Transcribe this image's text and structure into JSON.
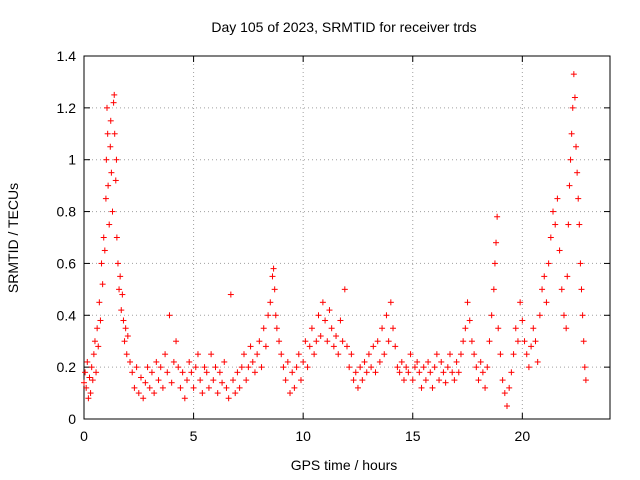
{
  "chart_data": {
    "type": "scatter",
    "title": "Day 105 of 2023, SRMTID for receiver trds",
    "xlabel": "GPS time / hours",
    "ylabel": "SRMTID / TECUs",
    "xlim": [
      0,
      24
    ],
    "ylim": [
      0,
      1.4
    ],
    "xticks": [
      0,
      5,
      10,
      15,
      20
    ],
    "xtick_labels": [
      "0",
      "5",
      "10",
      "15",
      "20"
    ],
    "yticks": [
      0,
      0.2,
      0.4,
      0.6,
      0.8,
      1.0,
      1.2,
      1.4
    ],
    "ytick_labels": [
      "0",
      "0.2",
      "0.4",
      "0.6",
      "0.8",
      "1",
      "1.2",
      "1.4"
    ],
    "grid": true,
    "marker": "+",
    "color": "#ff0000",
    "series": [
      {
        "name": "trds",
        "points": [
          [
            0.0,
            0.14
          ],
          [
            0.05,
            0.18
          ],
          [
            0.1,
            0.12
          ],
          [
            0.15,
            0.22
          ],
          [
            0.2,
            0.08
          ],
          [
            0.25,
            0.16
          ],
          [
            0.3,
            0.1
          ],
          [
            0.35,
            0.2
          ],
          [
            0.4,
            0.15
          ],
          [
            0.45,
            0.25
          ],
          [
            0.5,
            0.3
          ],
          [
            0.55,
            0.18
          ],
          [
            0.6,
            0.35
          ],
          [
            0.65,
            0.28
          ],
          [
            0.7,
            0.45
          ],
          [
            0.75,
            0.38
          ],
          [
            0.8,
            0.6
          ],
          [
            0.85,
            0.52
          ],
          [
            0.9,
            0.7
          ],
          [
            0.95,
            0.65
          ],
          [
            1.0,
            0.85
          ],
          [
            1.02,
            1.0
          ],
          [
            1.05,
            1.2
          ],
          [
            1.08,
            1.1
          ],
          [
            1.1,
            0.9
          ],
          [
            1.15,
            0.75
          ],
          [
            1.2,
            1.05
          ],
          [
            1.22,
            1.15
          ],
          [
            1.25,
            0.95
          ],
          [
            1.3,
            0.8
          ],
          [
            1.35,
            1.22
          ],
          [
            1.38,
            1.25
          ],
          [
            1.4,
            1.1
          ],
          [
            1.45,
            0.92
          ],
          [
            1.48,
            1.0
          ],
          [
            1.5,
            0.7
          ],
          [
            1.55,
            0.6
          ],
          [
            1.6,
            0.5
          ],
          [
            1.65,
            0.55
          ],
          [
            1.7,
            0.42
          ],
          [
            1.75,
            0.48
          ],
          [
            1.8,
            0.38
          ],
          [
            1.85,
            0.3
          ],
          [
            1.9,
            0.35
          ],
          [
            1.95,
            0.25
          ],
          [
            2.0,
            0.32
          ],
          [
            2.1,
            0.22
          ],
          [
            2.2,
            0.18
          ],
          [
            2.3,
            0.12
          ],
          [
            2.4,
            0.2
          ],
          [
            2.5,
            0.1
          ],
          [
            2.6,
            0.16
          ],
          [
            2.7,
            0.08
          ],
          [
            2.8,
            0.14
          ],
          [
            2.9,
            0.2
          ],
          [
            3.0,
            0.12
          ],
          [
            3.1,
            0.18
          ],
          [
            3.2,
            0.1
          ],
          [
            3.3,
            0.22
          ],
          [
            3.4,
            0.15
          ],
          [
            3.5,
            0.2
          ],
          [
            3.6,
            0.12
          ],
          [
            3.7,
            0.25
          ],
          [
            3.8,
            0.18
          ],
          [
            3.9,
            0.4
          ],
          [
            4.0,
            0.14
          ],
          [
            4.1,
            0.22
          ],
          [
            4.2,
            0.3
          ],
          [
            4.3,
            0.2
          ],
          [
            4.4,
            0.12
          ],
          [
            4.5,
            0.18
          ],
          [
            4.6,
            0.08
          ],
          [
            4.7,
            0.15
          ],
          [
            4.8,
            0.22
          ],
          [
            4.9,
            0.18
          ],
          [
            5.0,
            0.12
          ],
          [
            5.1,
            0.2
          ],
          [
            5.2,
            0.25
          ],
          [
            5.3,
            0.15
          ],
          [
            5.4,
            0.1
          ],
          [
            5.5,
            0.2
          ],
          [
            5.6,
            0.18
          ],
          [
            5.7,
            0.12
          ],
          [
            5.8,
            0.25
          ],
          [
            5.9,
            0.15
          ],
          [
            6.0,
            0.2
          ],
          [
            6.1,
            0.1
          ],
          [
            6.2,
            0.18
          ],
          [
            6.3,
            0.14
          ],
          [
            6.4,
            0.22
          ],
          [
            6.5,
            0.12
          ],
          [
            6.6,
            0.08
          ],
          [
            6.7,
            0.48
          ],
          [
            6.8,
            0.15
          ],
          [
            6.9,
            0.1
          ],
          [
            7.0,
            0.18
          ],
          [
            7.1,
            0.12
          ],
          [
            7.2,
            0.2
          ],
          [
            7.3,
            0.25
          ],
          [
            7.4,
            0.15
          ],
          [
            7.5,
            0.2
          ],
          [
            7.6,
            0.28
          ],
          [
            7.7,
            0.22
          ],
          [
            7.8,
            0.18
          ],
          [
            7.9,
            0.25
          ],
          [
            8.0,
            0.3
          ],
          [
            8.1,
            0.2
          ],
          [
            8.2,
            0.35
          ],
          [
            8.3,
            0.28
          ],
          [
            8.4,
            0.4
          ],
          [
            8.5,
            0.45
          ],
          [
            8.6,
            0.55
          ],
          [
            8.65,
            0.58
          ],
          [
            8.7,
            0.5
          ],
          [
            8.75,
            0.4
          ],
          [
            8.8,
            0.35
          ],
          [
            8.9,
            0.3
          ],
          [
            9.0,
            0.25
          ],
          [
            9.1,
            0.2
          ],
          [
            9.2,
            0.15
          ],
          [
            9.3,
            0.22
          ],
          [
            9.4,
            0.1
          ],
          [
            9.5,
            0.18
          ],
          [
            9.6,
            0.12
          ],
          [
            9.7,
            0.2
          ],
          [
            9.8,
            0.25
          ],
          [
            9.9,
            0.15
          ],
          [
            10.0,
            0.22
          ],
          [
            10.1,
            0.3
          ],
          [
            10.2,
            0.2
          ],
          [
            10.3,
            0.28
          ],
          [
            10.4,
            0.35
          ],
          [
            10.5,
            0.25
          ],
          [
            10.6,
            0.3
          ],
          [
            10.7,
            0.4
          ],
          [
            10.8,
            0.32
          ],
          [
            10.9,
            0.45
          ],
          [
            11.0,
            0.38
          ],
          [
            11.1,
            0.3
          ],
          [
            11.2,
            0.42
          ],
          [
            11.3,
            0.35
          ],
          [
            11.4,
            0.28
          ],
          [
            11.5,
            0.32
          ],
          [
            11.6,
            0.25
          ],
          [
            11.7,
            0.38
          ],
          [
            11.8,
            0.3
          ],
          [
            11.9,
            0.5
          ],
          [
            12.0,
            0.28
          ],
          [
            12.1,
            0.2
          ],
          [
            12.2,
            0.25
          ],
          [
            12.3,
            0.15
          ],
          [
            12.4,
            0.18
          ],
          [
            12.5,
            0.12
          ],
          [
            12.6,
            0.2
          ],
          [
            12.7,
            0.15
          ],
          [
            12.8,
            0.22
          ],
          [
            12.9,
            0.18
          ],
          [
            13.0,
            0.25
          ],
          [
            13.1,
            0.2
          ],
          [
            13.2,
            0.28
          ],
          [
            13.3,
            0.18
          ],
          [
            13.4,
            0.3
          ],
          [
            13.5,
            0.22
          ],
          [
            13.6,
            0.35
          ],
          [
            13.7,
            0.25
          ],
          [
            13.8,
            0.4
          ],
          [
            13.9,
            0.3
          ],
          [
            14.0,
            0.45
          ],
          [
            14.1,
            0.35
          ],
          [
            14.2,
            0.28
          ],
          [
            14.3,
            0.2
          ],
          [
            14.4,
            0.18
          ],
          [
            14.5,
            0.22
          ],
          [
            14.6,
            0.15
          ],
          [
            14.7,
            0.2
          ],
          [
            14.8,
            0.18
          ],
          [
            14.9,
            0.25
          ],
          [
            15.0,
            0.15
          ],
          [
            15.1,
            0.2
          ],
          [
            15.2,
            0.22
          ],
          [
            15.3,
            0.18
          ],
          [
            15.4,
            0.12
          ],
          [
            15.5,
            0.2
          ],
          [
            15.6,
            0.15
          ],
          [
            15.7,
            0.22
          ],
          [
            15.8,
            0.18
          ],
          [
            15.9,
            0.12
          ],
          [
            16.0,
            0.2
          ],
          [
            16.1,
            0.25
          ],
          [
            16.2,
            0.15
          ],
          [
            16.3,
            0.22
          ],
          [
            16.4,
            0.18
          ],
          [
            16.5,
            0.14
          ],
          [
            16.6,
            0.2
          ],
          [
            16.7,
            0.25
          ],
          [
            16.8,
            0.18
          ],
          [
            16.9,
            0.15
          ],
          [
            17.0,
            0.22
          ],
          [
            17.1,
            0.18
          ],
          [
            17.2,
            0.25
          ],
          [
            17.3,
            0.3
          ],
          [
            17.4,
            0.35
          ],
          [
            17.5,
            0.45
          ],
          [
            17.6,
            0.38
          ],
          [
            17.7,
            0.3
          ],
          [
            17.8,
            0.25
          ],
          [
            17.9,
            0.2
          ],
          [
            18.0,
            0.15
          ],
          [
            18.1,
            0.22
          ],
          [
            18.2,
            0.18
          ],
          [
            18.3,
            0.12
          ],
          [
            18.4,
            0.2
          ],
          [
            18.5,
            0.3
          ],
          [
            18.6,
            0.4
          ],
          [
            18.7,
            0.5
          ],
          [
            18.75,
            0.6
          ],
          [
            18.8,
            0.68
          ],
          [
            18.85,
            0.78
          ],
          [
            18.9,
            0.35
          ],
          [
            19.0,
            0.25
          ],
          [
            19.1,
            0.15
          ],
          [
            19.2,
            0.1
          ],
          [
            19.3,
            0.05
          ],
          [
            19.4,
            0.12
          ],
          [
            19.5,
            0.18
          ],
          [
            19.6,
            0.25
          ],
          [
            19.7,
            0.35
          ],
          [
            19.8,
            0.3
          ],
          [
            19.9,
            0.45
          ],
          [
            20.0,
            0.38
          ],
          [
            20.1,
            0.3
          ],
          [
            20.2,
            0.25
          ],
          [
            20.3,
            0.2
          ],
          [
            20.4,
            0.28
          ],
          [
            20.5,
            0.35
          ],
          [
            20.6,
            0.3
          ],
          [
            20.7,
            0.22
          ],
          [
            20.8,
            0.4
          ],
          [
            20.9,
            0.5
          ],
          [
            21.0,
            0.55
          ],
          [
            21.1,
            0.45
          ],
          [
            21.2,
            0.6
          ],
          [
            21.3,
            0.7
          ],
          [
            21.4,
            0.8
          ],
          [
            21.5,
            0.75
          ],
          [
            21.6,
            0.85
          ],
          [
            21.7,
            0.65
          ],
          [
            21.8,
            0.5
          ],
          [
            21.9,
            0.4
          ],
          [
            22.0,
            0.35
          ],
          [
            22.05,
            0.55
          ],
          [
            22.1,
            0.75
          ],
          [
            22.15,
            0.9
          ],
          [
            22.2,
            1.0
          ],
          [
            22.25,
            1.1
          ],
          [
            22.3,
            1.2
          ],
          [
            22.35,
            1.33
          ],
          [
            22.4,
            1.24
          ],
          [
            22.45,
            1.05
          ],
          [
            22.5,
            0.95
          ],
          [
            22.55,
            0.85
          ],
          [
            22.6,
            0.75
          ],
          [
            22.65,
            0.6
          ],
          [
            22.7,
            0.5
          ],
          [
            22.75,
            0.4
          ],
          [
            22.8,
            0.3
          ],
          [
            22.85,
            0.2
          ],
          [
            22.9,
            0.15
          ]
        ]
      }
    ]
  }
}
